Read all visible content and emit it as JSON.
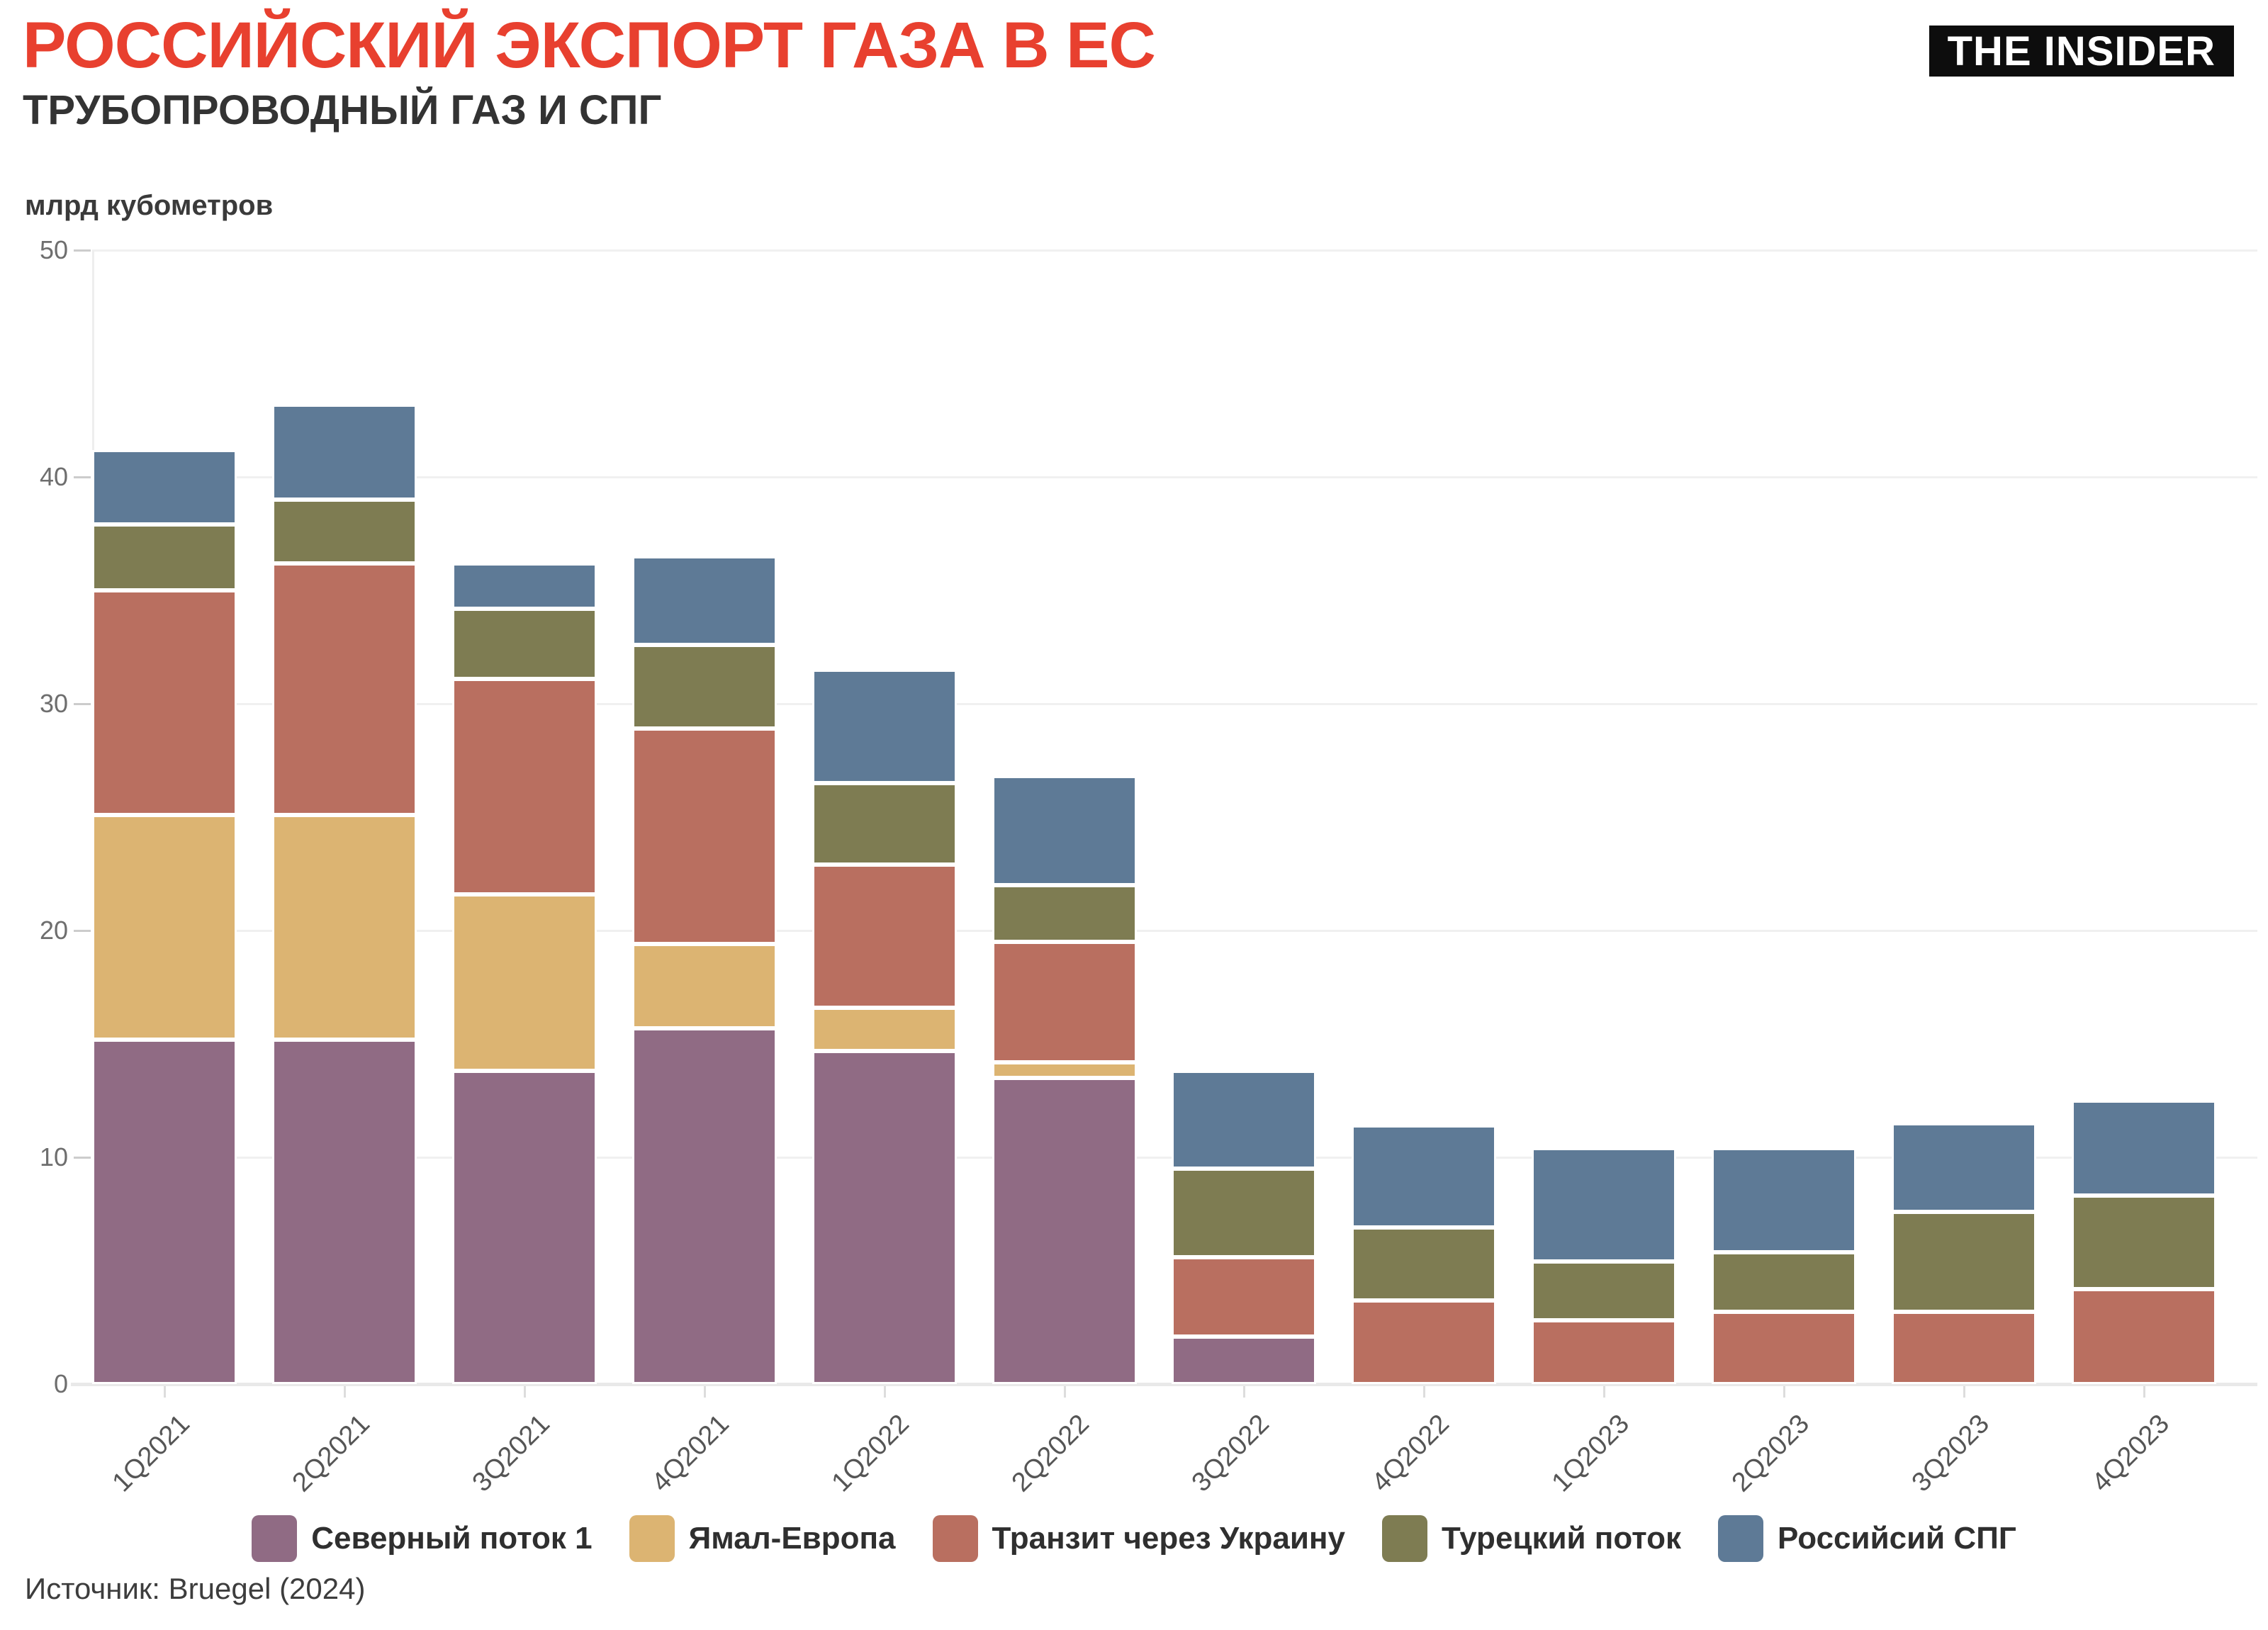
{
  "header": {
    "title": "РОССИЙСКИЙ ЭКСПОРТ ГАЗА В ЕС",
    "subtitle": "ТРУБОПРОВОДНЫЙ ГАЗ И СПГ",
    "title_color": "#e8402f",
    "logo_text": "THE INSIDER"
  },
  "footer": {
    "source": "Источник: Bruegel (2024)"
  },
  "chart_data": {
    "type": "bar",
    "stacked": true,
    "title": "РОССИЙСКИЙ ЭКСПОРТ ГАЗА В ЕС — ТРУБОПРОВОДНЫЙ ГАЗ И СПГ",
    "ylabel": "млрд кубометров",
    "xlabel": "",
    "ylim": [
      0,
      50
    ],
    "yticks": [
      0,
      10,
      20,
      30,
      40,
      50
    ],
    "grid": "horizontal",
    "legend_position": "bottom",
    "categories": [
      "1Q2021",
      "2Q2021",
      "3Q2021",
      "4Q2021",
      "1Q2022",
      "2Q2022",
      "3Q2022",
      "4Q2022",
      "1Q2023",
      "2Q2023",
      "3Q2023",
      "4Q2023"
    ],
    "series": [
      {
        "name": "Северный поток 1",
        "color": "#906b84",
        "values": [
          15.2,
          15.2,
          13.8,
          15.7,
          14.7,
          13.5,
          2.1,
          0,
          0,
          0,
          0,
          0
        ]
      },
      {
        "name": "Ямал-Европа",
        "color": "#dcb472",
        "values": [
          9.9,
          9.9,
          7.8,
          3.7,
          1.9,
          0.7,
          0,
          0,
          0,
          0,
          0,
          0
        ]
      },
      {
        "name": "Транзит через Украину",
        "color": "#b96f60",
        "values": [
          9.9,
          11.1,
          9.5,
          9.5,
          6.3,
          5.3,
          3.5,
          3.7,
          2.8,
          3.2,
          3.2,
          4.2
        ]
      },
      {
        "name": "Турецкий поток",
        "color": "#7e7c52",
        "values": [
          2.9,
          2.8,
          3.1,
          3.7,
          3.6,
          2.5,
          3.9,
          3.2,
          2.6,
          2.6,
          4.4,
          4.1
        ]
      },
      {
        "name": "Российсий СПГ",
        "color": "#5e7a96",
        "values": [
          3.3,
          4.2,
          2.0,
          3.9,
          5.0,
          4.8,
          4.3,
          4.5,
          5.0,
          4.6,
          3.9,
          4.2
        ]
      }
    ],
    "totals": [
      41.2,
      43.2,
      36.2,
      36.5,
      31.5,
      26.8,
      13.8,
      11.4,
      10.4,
      10.4,
      11.5,
      12.5
    ]
  }
}
